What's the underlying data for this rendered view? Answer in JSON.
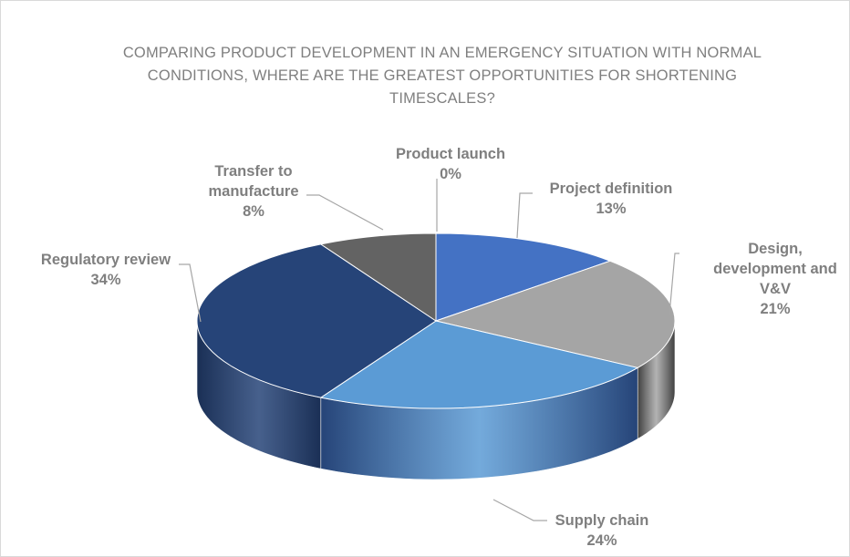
{
  "chart_data": {
    "type": "pie",
    "style": "3d",
    "title": "COMPARING PRODUCT DEVELOPMENT IN AN EMERGENCY SITUATION WITH NORMAL CONDITIONS, WHERE ARE THE GREATEST OPPORTUNITIES FOR SHORTENING TIMESCALES?",
    "title_lines": [
      "COMPARING PRODUCT DEVELOPMENT IN AN EMERGENCY SITUATION WITH NORMAL",
      "CONDITIONS, WHERE ARE THE GREATEST OPPORTUNITIES FOR SHORTENING",
      "TIMESCALES?"
    ],
    "slices": [
      {
        "label": "Product launch",
        "label_lines": [
          "Product launch"
        ],
        "value": 0,
        "pct_label": "0%",
        "color": "#4472c4",
        "side_color": "#2f528f"
      },
      {
        "label": "Project definition",
        "label_lines": [
          "Project definition"
        ],
        "value": 13,
        "pct_label": "13%",
        "color": "#4472c4",
        "side_color": "#2f528f"
      },
      {
        "label": "Design, development and V&V",
        "label_lines": [
          "Design,",
          "development and",
          "V&V"
        ],
        "value": 21,
        "pct_label": "21%",
        "color": "#a5a5a5",
        "side_color": "#3f3f3f"
      },
      {
        "label": "Supply chain",
        "label_lines": [
          "Supply chain"
        ],
        "value": 24,
        "pct_label": "24%",
        "color": "#5b9bd5",
        "side_color": "#264478"
      },
      {
        "label": "Regulatory review",
        "label_lines": [
          "Regulatory review"
        ],
        "value": 34,
        "pct_label": "34%",
        "color": "#264478",
        "side_color": "#1a2f55"
      },
      {
        "label": "Transfer to manufacture",
        "label_lines": [
          "Transfer to",
          "manufacture"
        ],
        "value": 8,
        "pct_label": "8%",
        "color": "#636363",
        "side_color": "#3a3a3a"
      }
    ],
    "legend": "none",
    "data_labels": "outside-with-leaders"
  }
}
